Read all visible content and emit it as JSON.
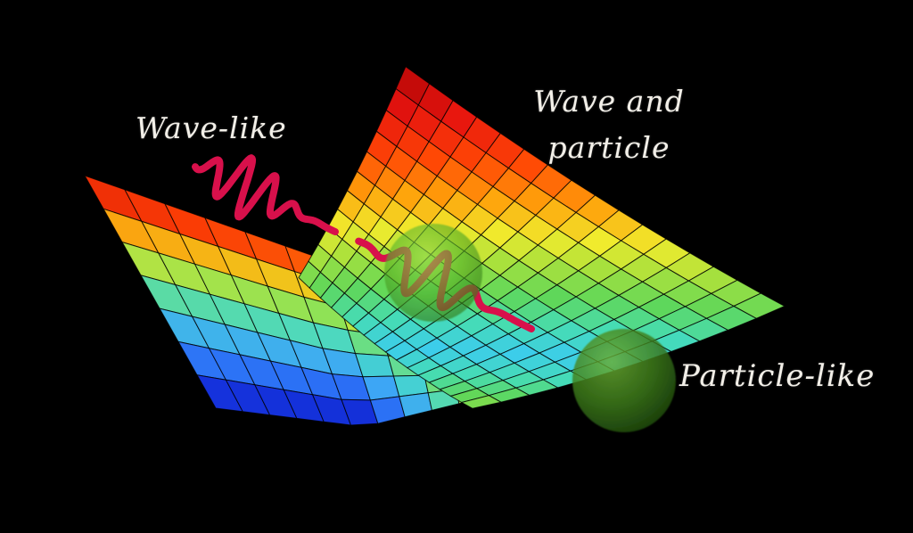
{
  "figure": {
    "background": "#000000",
    "labels": {
      "wave_like": "Wave-like",
      "wave_and": "Wave and",
      "particle": "particle",
      "particle_like": "Particle-like"
    },
    "colors": {
      "text": "#f2efe8",
      "wave_packet": "#d8104b",
      "sphere_core": "#96dc50",
      "sphere_mid": "#57b42a",
      "sphere_edge": "#2f7014",
      "particle_core": "#6cb034",
      "particle_mid": "#3f7f1c",
      "particle_edge": "#1e4a0c"
    },
    "surface_ramp_main": [
      [
        0.0,
        "#3ccdeb"
      ],
      [
        0.14,
        "#46dcb4"
      ],
      [
        0.27,
        "#5fd75a"
      ],
      [
        0.4,
        "#aae13c"
      ],
      [
        0.5,
        "#f0eb2d"
      ],
      [
        0.62,
        "#ffa00a"
      ],
      [
        0.74,
        "#ff4605"
      ],
      [
        0.87,
        "#e6140f"
      ],
      [
        1.0,
        "#af0505"
      ]
    ],
    "surface_ramp_left": [
      [
        0.0,
        "#0a19aa"
      ],
      [
        0.1,
        "#193cf0"
      ],
      [
        0.3,
        "#3ca0fa"
      ],
      [
        0.45,
        "#46d7cd"
      ],
      [
        0.58,
        "#7de15f"
      ],
      [
        0.7,
        "#e6e628"
      ],
      [
        0.8,
        "#ff960a"
      ],
      [
        0.9,
        "#fa3c05"
      ],
      [
        1.0,
        "#cd0a0a"
      ]
    ]
  }
}
